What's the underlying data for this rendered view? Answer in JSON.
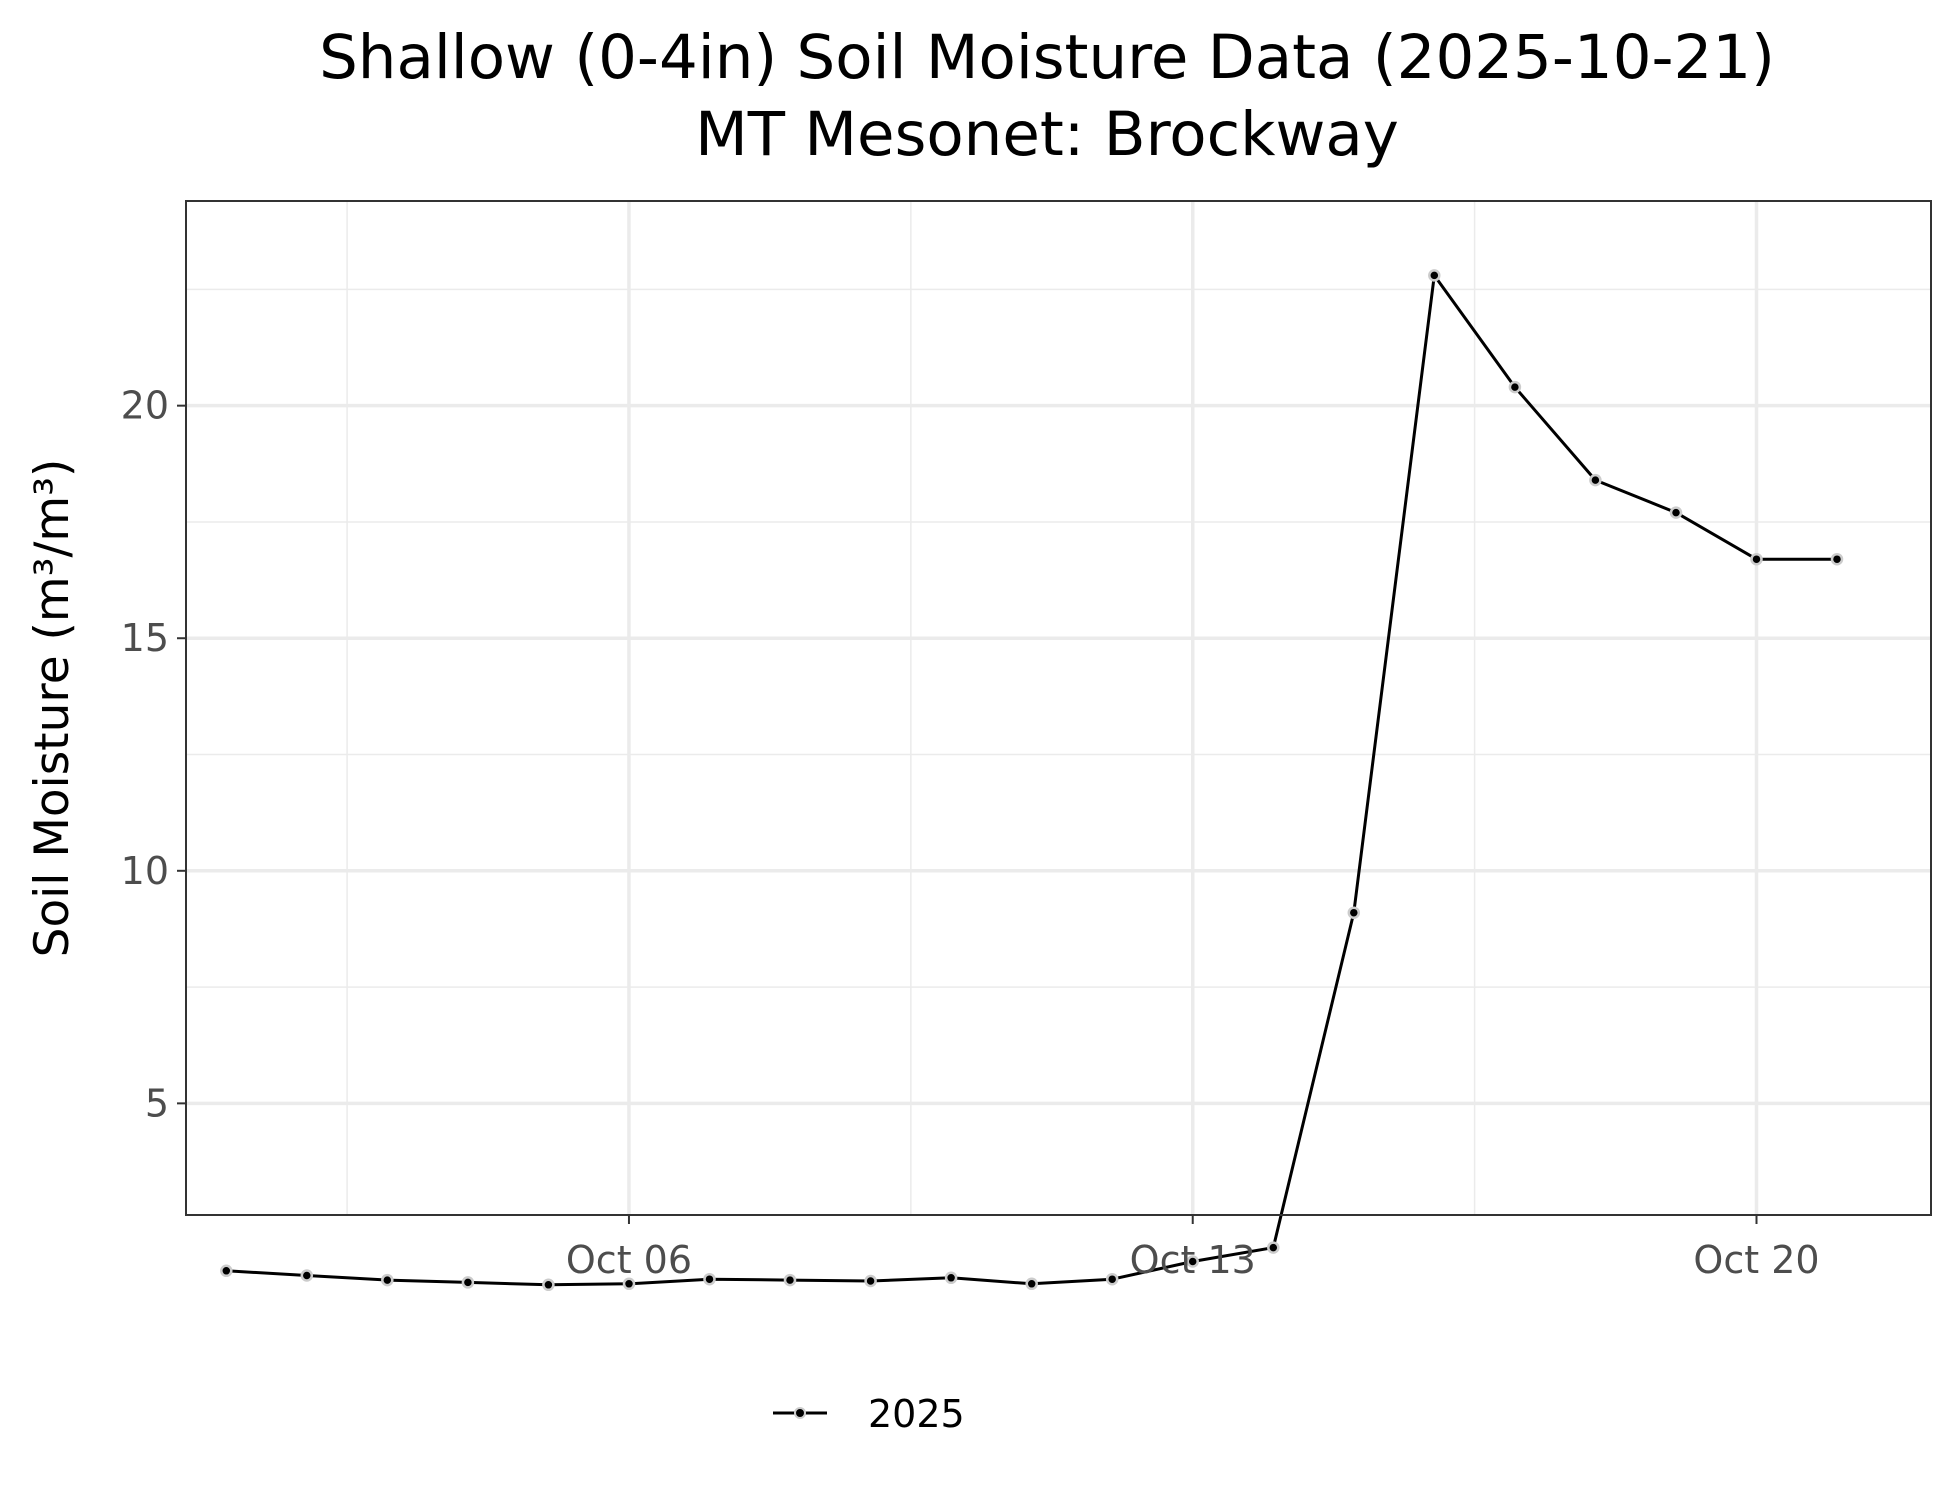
{
  "chart_data": {
    "type": "line",
    "title": "Shallow (0-4in) Soil Moisture Data (2025-10-21)",
    "subtitle": "MT Mesonet: Brockway",
    "xlabel": "",
    "ylabel": "Soil Moisture (m³/m³)",
    "x_tick_labels": [
      "Oct 06",
      "Oct 13",
      "Oct 20"
    ],
    "x_tick_dates": [
      "2025-10-06",
      "2025-10-13",
      "2025-10-20"
    ],
    "y_ticks": [
      5,
      10,
      15,
      20
    ],
    "xlim": [
      "2025-09-30T12:00",
      "2025-10-22T04:00"
    ],
    "ylim": [
      2.6,
      24.4
    ],
    "grid": true,
    "legend_position": "bottom",
    "series": [
      {
        "name": "2025",
        "color": "#000000",
        "point_fill": "#000000",
        "point_outline": "#cccccc",
        "x": [
          "2025-10-01",
          "2025-10-02",
          "2025-10-03",
          "2025-10-04",
          "2025-10-05",
          "2025-10-06",
          "2025-10-07",
          "2025-10-08",
          "2025-10-09",
          "2025-10-10",
          "2025-10-11",
          "2025-10-12",
          "2025-10-13",
          "2025-10-14",
          "2025-10-15",
          "2025-10-16",
          "2025-10-17",
          "2025-10-18",
          "2025-10-19",
          "2025-10-20",
          "2025-10-21"
        ],
        "values": [
          1.4,
          1.3,
          1.2,
          1.15,
          1.1,
          1.12,
          1.22,
          1.2,
          1.18,
          1.25,
          1.12,
          1.22,
          1.6,
          1.9,
          9.1,
          22.8,
          20.4,
          18.4,
          17.7,
          16.7,
          16.7
        ]
      }
    ]
  }
}
